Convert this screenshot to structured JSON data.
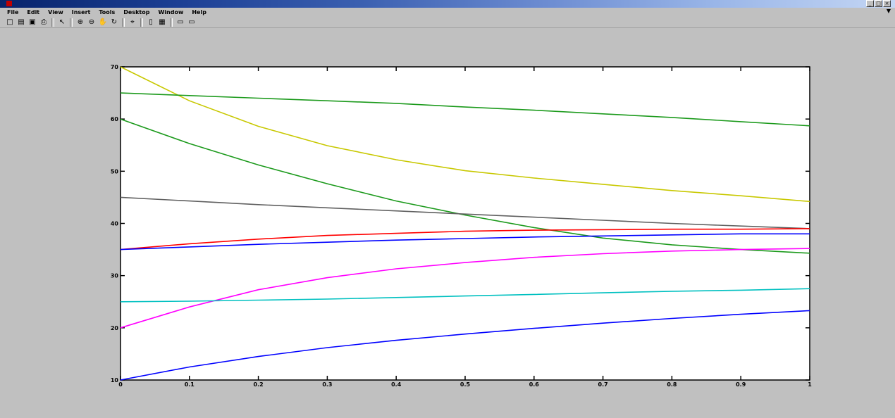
{
  "window": {
    "title": "",
    "controls": [
      "_",
      "□",
      "×"
    ]
  },
  "menu": [
    "File",
    "Edit",
    "View",
    "Insert",
    "Tools",
    "Desktop",
    "Window",
    "Help"
  ],
  "toolbar": [
    {
      "name": "new-figure-icon",
      "glyph": "□"
    },
    {
      "name": "open-file-icon",
      "glyph": "▤"
    },
    {
      "name": "save-icon",
      "glyph": "▣"
    },
    {
      "name": "print-icon",
      "glyph": "⎙"
    },
    {
      "sep": true
    },
    {
      "name": "select-arrow-icon",
      "glyph": "↖"
    },
    {
      "sep": true
    },
    {
      "name": "zoom-in-icon",
      "glyph": "⊕"
    },
    {
      "name": "zoom-out-icon",
      "glyph": "⊖"
    },
    {
      "name": "pan-icon",
      "glyph": "✋"
    },
    {
      "name": "rotate-3d-icon",
      "glyph": "↻"
    },
    {
      "sep": true
    },
    {
      "name": "data-cursor-icon",
      "glyph": "⌖"
    },
    {
      "sep": true
    },
    {
      "name": "colorbar-icon",
      "glyph": "▯"
    },
    {
      "name": "legend-icon",
      "glyph": "▦"
    },
    {
      "sep": true
    },
    {
      "name": "hide-plot-tools-icon",
      "glyph": "▭"
    },
    {
      "name": "show-plot-tools-icon",
      "glyph": "▭"
    }
  ],
  "chart_data": {
    "type": "line",
    "title": "",
    "xlabel": "",
    "ylabel": "",
    "xlim": [
      0,
      1
    ],
    "ylim": [
      10,
      70
    ],
    "grid": false,
    "xticks": [
      0,
      0.1,
      0.2,
      0.3,
      0.4,
      0.5,
      0.6,
      0.7,
      0.8,
      0.9,
      1
    ],
    "xtick_labels": [
      "0",
      "0.1",
      "0.2",
      "0.3",
      "0.4",
      "0.5",
      "0.6",
      "0.7",
      "0.8",
      "0.9",
      "1"
    ],
    "yticks": [
      10,
      20,
      30,
      40,
      50,
      60,
      70
    ],
    "ytick_labels": [
      "10",
      "20",
      "30",
      "40",
      "50",
      "60",
      "70"
    ],
    "x": [
      0,
      0.1,
      0.2,
      0.3,
      0.4,
      0.5,
      0.6,
      0.7,
      0.8,
      0.9,
      1
    ],
    "series": [
      {
        "color": "#c8c800",
        "values": [
          70,
          63.5,
          58.6,
          54.9,
          52.2,
          50.1,
          48.7,
          47.5,
          46.3,
          45.3,
          44.2
        ]
      },
      {
        "color": "#1c9a1c",
        "values": [
          65,
          64.5,
          64,
          63.5,
          63,
          62.3,
          61.7,
          61,
          60.3,
          59.5,
          58.7
        ]
      },
      {
        "color": "#1c9a1c",
        "values": [
          60,
          55.3,
          51.2,
          47.6,
          44.3,
          41.6,
          39.2,
          37.2,
          35.9,
          35,
          34.3
        ]
      },
      {
        "color": "#606060",
        "values": [
          45,
          44.3,
          43.6,
          43,
          42.4,
          41.8,
          41.2,
          40.6,
          40,
          39.5,
          39
        ]
      },
      {
        "color": "#ff0000",
        "values": [
          35,
          36.1,
          37,
          37.7,
          38.1,
          38.5,
          38.7,
          38.8,
          38.9,
          38.9,
          39
        ]
      },
      {
        "color": "#0000ff",
        "values": [
          35,
          35.5,
          36,
          36.4,
          36.8,
          37.1,
          37.4,
          37.6,
          37.8,
          38,
          38
        ]
      },
      {
        "color": "#ff00ff",
        "values": [
          20,
          24,
          27.3,
          29.6,
          31.3,
          32.5,
          33.5,
          34.2,
          34.7,
          35,
          35.2
        ]
      },
      {
        "color": "#00c0c0",
        "values": [
          25,
          25.1,
          25.3,
          25.5,
          25.8,
          26.1,
          26.4,
          26.7,
          27,
          27.2,
          27.5
        ]
      },
      {
        "color": "#0000ff",
        "values": [
          10,
          12.5,
          14.5,
          16.2,
          17.6,
          18.8,
          19.9,
          20.9,
          21.8,
          22.6,
          23.3
        ]
      }
    ]
  }
}
